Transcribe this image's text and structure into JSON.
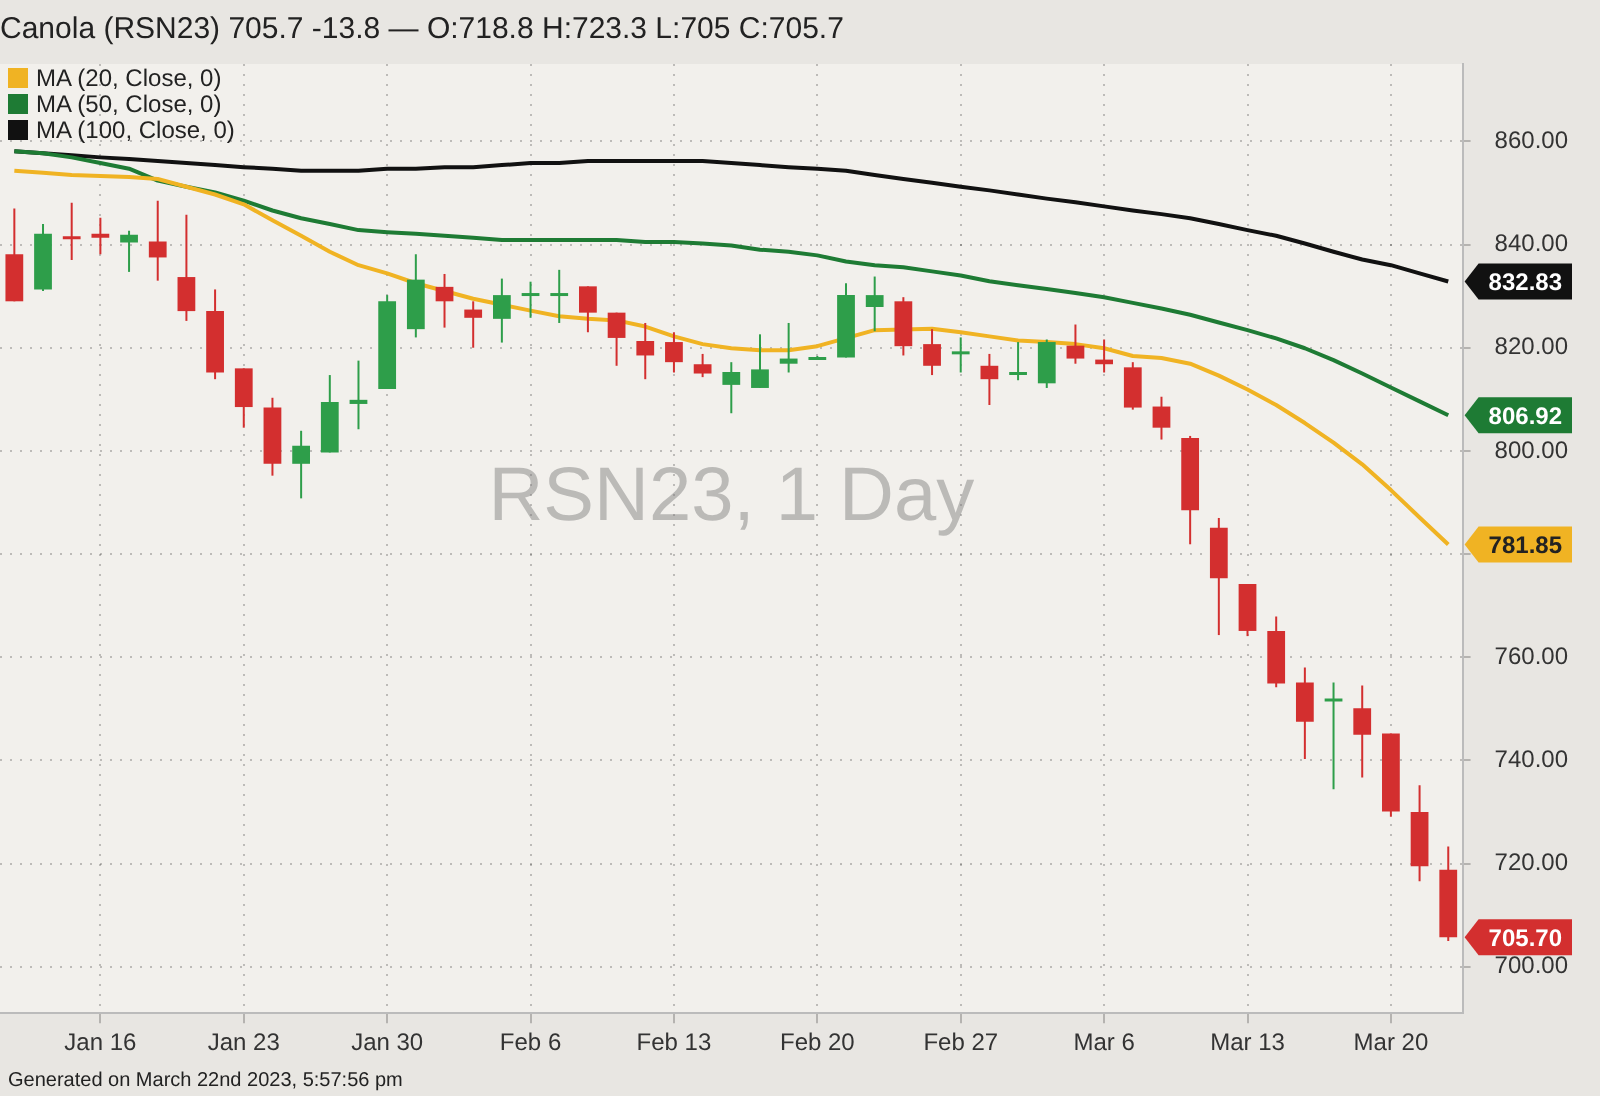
{
  "chart_data": {
    "type": "candlestick",
    "title": "Canola (RSN23) 705.7 -13.8 — O:718.8 H:723.3 L:705 C:705.7",
    "annotations": [
      "RSN23, 1 Day",
      "Generated on March 22nd 2023, 5:57:56 pm"
    ],
    "categories": [
      null,
      null,
      null,
      "Jan 16",
      null,
      null,
      null,
      null,
      "Jan 23",
      null,
      null,
      null,
      null,
      "Jan 30",
      null,
      null,
      null,
      null,
      "Feb 6",
      null,
      null,
      null,
      null,
      "Feb 13",
      null,
      null,
      null,
      null,
      "Feb 20",
      null,
      null,
      null,
      null,
      "Feb 27",
      null,
      null,
      null,
      null,
      "Mar 6",
      null,
      null,
      null,
      null,
      "Mar 13",
      null,
      null,
      null,
      null,
      "Mar 20",
      null,
      null
    ],
    "series": [
      {
        "value_labels": [
          null,
          null,
          null,
          null,
          null,
          null,
          null,
          null,
          null,
          null,
          null,
          null,
          null,
          null,
          null,
          null,
          null,
          null,
          null,
          null,
          null,
          null,
          null,
          null,
          null,
          null,
          null,
          null,
          null,
          null,
          null,
          null,
          null,
          null,
          null,
          null,
          null,
          null,
          null,
          null,
          null,
          null,
          null,
          null,
          null,
          null,
          null,
          null,
          null,
          null,
          "705.70"
        ],
        "ohlc": [
          [
            838.1,
            847,
            829,
            829.0
          ],
          [
            831.3,
            844.0,
            831.0,
            842.1
          ],
          [
            841.6,
            848.1,
            837.0,
            841.2
          ],
          [
            842.1,
            845.2,
            838.1,
            841.3
          ],
          [
            840.4,
            842.7,
            834.7,
            841.9
          ],
          [
            840.6,
            848.5,
            833.0,
            837.5
          ],
          [
            833.7,
            845.8,
            825.2,
            827.1
          ],
          [
            827.1,
            831.3,
            813.9,
            815.2
          ],
          [
            816.0,
            816.0,
            804.5,
            808.5
          ],
          [
            808.4,
            810.3,
            795.2,
            797.5
          ],
          [
            797.5,
            803.9,
            790.8,
            801.0
          ],
          [
            799.7,
            814.7,
            799.7,
            809.5
          ],
          [
            809.1,
            817.5,
            804.2,
            809.9
          ],
          [
            812.0,
            830.2,
            812.0,
            829.0
          ],
          [
            823.6,
            838.1,
            822.0,
            833.2
          ],
          [
            831.8,
            834.3,
            823.9,
            829.0
          ],
          [
            827.4,
            829.0,
            820.0,
            825.8
          ],
          [
            825.6,
            833.4,
            821.0,
            830.2
          ],
          [
            830.2,
            832.8,
            825.8,
            830.6
          ],
          [
            830.4,
            835.1,
            824.8,
            830.6
          ],
          [
            831.9,
            831.9,
            823.0,
            826.8
          ],
          [
            826.8,
            826.8,
            816.5,
            821.9
          ],
          [
            821.3,
            824.8,
            813.9,
            818.5
          ],
          [
            821.1,
            823.0,
            815.2,
            817.2
          ],
          [
            816.8,
            818.8,
            814.3,
            815.0
          ],
          [
            812.8,
            817.2,
            807.3,
            815.3
          ],
          [
            812.2,
            822.6,
            812.2,
            815.8
          ],
          [
            816.9,
            824.8,
            815.2,
            817.9
          ],
          [
            818.0,
            818.4,
            817.8,
            818.2
          ],
          [
            818.1,
            832.5,
            818.1,
            830.2
          ],
          [
            827.9,
            833.8,
            823.2,
            830.2
          ],
          [
            829.0,
            829.8,
            818.5,
            820.3
          ],
          [
            820.7,
            823.6,
            814.7,
            816.5
          ],
          [
            819.0,
            822.0,
            815.2,
            819.3
          ],
          [
            816.5,
            818.8,
            808.9,
            813.9
          ],
          [
            815.0,
            821.1,
            813.7,
            815.3
          ],
          [
            813.1,
            821.6,
            812.2,
            821.1
          ],
          [
            820.4,
            824.5,
            816.9,
            817.9
          ],
          [
            817.7,
            821.6,
            815.2,
            816.8
          ],
          [
            816.2,
            817.2,
            808.0,
            808.4
          ],
          [
            808.6,
            810.5,
            802.2,
            804.5
          ],
          [
            802.5,
            802.9,
            781.9,
            788.5
          ],
          [
            785.1,
            787.0,
            764.3,
            775.3
          ],
          [
            774.2,
            774.2,
            764.1,
            765.1
          ],
          [
            765.1,
            767.9,
            754.2,
            754.9
          ],
          [
            755.1,
            758.0,
            740.3,
            747.5
          ],
          [
            751.7,
            755.1,
            734.4,
            752.0
          ],
          [
            750.1,
            754.5,
            736.7,
            745.0
          ],
          [
            745.2,
            745.2,
            729.1,
            730.1
          ],
          [
            730.0,
            735.2,
            716.6,
            719.5
          ],
          [
            718.8,
            723.3,
            705,
            705.7
          ]
        ]
      },
      {
        "type": "line",
        "name": "MA (20, Close, 0)",
        "color": "#f0b323",
        "values": [
          854.3,
          853.9,
          853.5,
          853.3,
          853.1,
          852.7,
          851.2,
          849.7,
          847.8,
          844.7,
          841.7,
          838.6,
          836.0,
          834.4,
          832.5,
          831.0,
          829.5,
          null,
          827.2,
          826.1,
          825.6,
          825.3,
          824.1,
          822.2,
          820.7,
          819.9,
          819.5,
          819.5,
          820.3,
          null,
          823.4,
          null,
          823.7,
          823.0,
          822.2,
          821.4,
          821.1,
          820.7,
          819.9,
          818.4,
          818.0,
          816.9,
          814.6,
          811.9,
          808.9,
          805.4,
          801.6,
          797.4,
          792.4,
          787.1,
          781.85
        ],
        "value_labels": [
          null,
          null,
          null,
          null,
          null,
          null,
          null,
          null,
          null,
          null,
          null,
          null,
          null,
          null,
          null,
          null,
          null,
          null,
          null,
          null,
          null,
          null,
          null,
          null,
          null,
          null,
          null,
          null,
          null,
          null,
          null,
          null,
          null,
          null,
          null,
          null,
          null,
          null,
          null,
          null,
          null,
          null,
          null,
          null,
          null,
          null,
          null,
          null,
          null,
          null,
          "781.85"
        ]
      },
      {
        "type": "line",
        "name": "MA (50, Close, 0)",
        "color": "#1e7b34",
        "values": [
          858.1,
          857.7,
          856.9,
          855.8,
          854.7,
          852.4,
          851.2,
          850.1,
          848.5,
          846.6,
          845.1,
          844.0,
          842.8,
          842.4,
          842.1,
          841.7,
          841.3,
          840.9,
          840.9,
          840.9,
          840.9,
          840.9,
          840.5,
          840.5,
          840.2,
          839.8,
          839.0,
          838.6,
          837.9,
          836.7,
          836.0,
          835.6,
          834.8,
          834.0,
          832.9,
          832.1,
          831.4,
          830.6,
          829.8,
          828.7,
          827.6,
          826.4,
          824.9,
          823.4,
          821.8,
          819.9,
          817.6,
          815.0,
          812.3,
          809.6,
          806.92
        ],
        "value_labels": [
          null,
          null,
          null,
          null,
          null,
          null,
          null,
          null,
          null,
          null,
          null,
          null,
          null,
          null,
          null,
          null,
          null,
          null,
          null,
          null,
          null,
          null,
          null,
          null,
          null,
          null,
          null,
          null,
          null,
          null,
          null,
          null,
          null,
          null,
          null,
          null,
          null,
          null,
          null,
          null,
          null,
          null,
          null,
          null,
          null,
          null,
          null,
          null,
          null,
          null,
          "806.92"
        ]
      },
      {
        "type": "line",
        "name": "MA (100, Close, 0)",
        "color": "#111111",
        "values": [
          858.1,
          857.7,
          857.3,
          856.9,
          856.6,
          856.2,
          855.8,
          855.4,
          855.0,
          854.7,
          854.3,
          854.3,
          854.3,
          854.7,
          854.7,
          855.0,
          855.0,
          855.4,
          855.8,
          855.8,
          856.2,
          856.2,
          856.2,
          856.2,
          856.2,
          855.8,
          855.4,
          855.0,
          854.7,
          854.3,
          853.5,
          852.7,
          852.0,
          851.2,
          850.5,
          849.7,
          848.9,
          848.2,
          847.4,
          846.6,
          845.9,
          845.1,
          844.0,
          842.8,
          841.7,
          840.2,
          838.6,
          837.1,
          836.0,
          834.4,
          832.83
        ],
        "value_labels": [
          null,
          null,
          null,
          null,
          null,
          null,
          null,
          null,
          null,
          null,
          null,
          null,
          null,
          null,
          null,
          null,
          null,
          null,
          null,
          null,
          null,
          null,
          null,
          null,
          null,
          null,
          null,
          null,
          null,
          null,
          null,
          null,
          null,
          null,
          null,
          null,
          null,
          null,
          null,
          null,
          null,
          null,
          null,
          null,
          null,
          null,
          null,
          null,
          null,
          null,
          "832.83"
        ]
      }
    ],
    "ylim": [
      691,
      875
    ],
    "yticks": [
      {
        "value": 700,
        "label": "700.00"
      },
      {
        "value": 720,
        "label": "720.00"
      },
      {
        "value": 740,
        "label": "740.00"
      },
      {
        "value": 760,
        "label": "760.00"
      },
      {
        "value": 780,
        "label": null
      },
      {
        "value": 800,
        "label": "800.00"
      },
      {
        "value": 820,
        "label": "820.00"
      },
      {
        "value": 840,
        "label": "840.00"
      },
      {
        "value": 860,
        "label": "860.00"
      }
    ],
    "grid": true,
    "legend": "top left",
    "marker": "none",
    "line_style": "solid"
  }
}
